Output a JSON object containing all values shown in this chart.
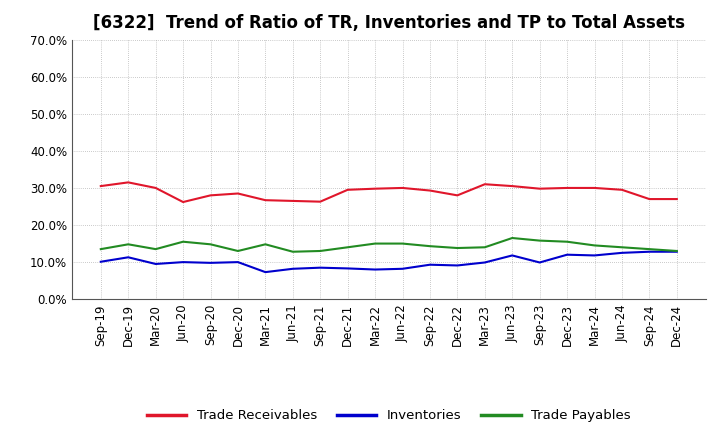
{
  "title": "[6322]  Trend of Ratio of TR, Inventories and TP to Total Assets",
  "x_labels": [
    "Sep-19",
    "Dec-19",
    "Mar-20",
    "Jun-20",
    "Sep-20",
    "Dec-20",
    "Mar-21",
    "Jun-21",
    "Sep-21",
    "Dec-21",
    "Mar-22",
    "Jun-22",
    "Sep-22",
    "Dec-22",
    "Mar-23",
    "Jun-23",
    "Sep-23",
    "Dec-23",
    "Mar-24",
    "Jun-24",
    "Sep-24",
    "Dec-24"
  ],
  "trade_receivables": [
    0.305,
    0.315,
    0.3,
    0.262,
    0.28,
    0.285,
    0.267,
    0.265,
    0.263,
    0.295,
    0.298,
    0.3,
    0.293,
    0.28,
    0.31,
    0.305,
    0.298,
    0.3,
    0.3,
    0.295,
    0.27,
    0.27
  ],
  "inventories": [
    0.101,
    0.113,
    0.095,
    0.1,
    0.098,
    0.1,
    0.073,
    0.082,
    0.085,
    0.083,
    0.08,
    0.082,
    0.093,
    0.091,
    0.099,
    0.118,
    0.099,
    0.12,
    0.118,
    0.125,
    0.128,
    0.128
  ],
  "trade_payables": [
    0.135,
    0.148,
    0.135,
    0.155,
    0.148,
    0.13,
    0.148,
    0.128,
    0.13,
    0.14,
    0.15,
    0.15,
    0.143,
    0.138,
    0.14,
    0.165,
    0.158,
    0.155,
    0.145,
    0.14,
    0.135,
    0.13
  ],
  "tr_color": "#e0162b",
  "inv_color": "#0000cd",
  "tp_color": "#228b22",
  "ylim": [
    0.0,
    0.7
  ],
  "yticks": [
    0.0,
    0.1,
    0.2,
    0.3,
    0.4,
    0.5,
    0.6,
    0.7
  ],
  "legend_labels": [
    "Trade Receivables",
    "Inventories",
    "Trade Payables"
  ],
  "background_color": "#ffffff",
  "grid_color": "#999999",
  "title_fontsize": 12,
  "label_fontsize": 8.5,
  "line_width": 1.5
}
